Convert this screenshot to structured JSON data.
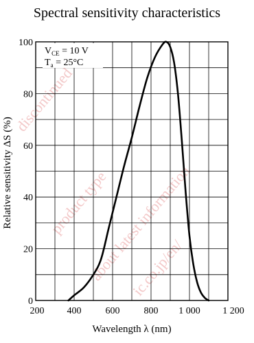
{
  "chart_data": {
    "type": "line",
    "title": "Spectral sensitivity characteristics",
    "xlabel": "Wavelength  λ  (nm)",
    "ylabel": "Relative sensitivity  ΔS  (%)",
    "xlim": [
      200,
      1200
    ],
    "ylim": [
      0,
      100
    ],
    "x_ticks": [
      200,
      400,
      600,
      800,
      1000,
      1200
    ],
    "y_ticks": [
      0,
      20,
      40,
      60,
      80,
      100
    ],
    "x_tick_labels": [
      "200",
      "400",
      "600",
      "800",
      "1 000",
      "1 200"
    ],
    "y_tick_labels": [
      "0",
      "20",
      "40",
      "60",
      "80",
      "100"
    ],
    "grid": true,
    "annotations": [
      "V_CE = 10 V",
      "T_a = 25°C"
    ],
    "series": [
      {
        "x": [
          370,
          400,
          450,
          500,
          540,
          580,
          620,
          660,
          700,
          740,
          780,
          820,
          860,
          880,
          900,
          920,
          940,
          960,
          980,
          1000,
          1020,
          1040,
          1060,
          1080,
          1100
        ],
        "y": [
          0,
          2,
          5,
          10,
          16,
          28,
          40,
          52,
          63,
          75,
          86,
          94,
          99,
          100,
          98,
          92,
          80,
          62,
          42,
          25,
          14,
          7,
          3,
          1,
          0
        ]
      }
    ]
  },
  "annotation_box": {
    "line1_main": "V",
    "line1_sub": "CE",
    "line1_rest": " = 10 V",
    "line2_main": "T",
    "line2_sub": "a",
    "line2_rest": " = 25°C"
  },
  "watermark_lines": [
    "about latest information",
    "ic.co.jp/en/",
    "product type",
    "discontinued"
  ]
}
